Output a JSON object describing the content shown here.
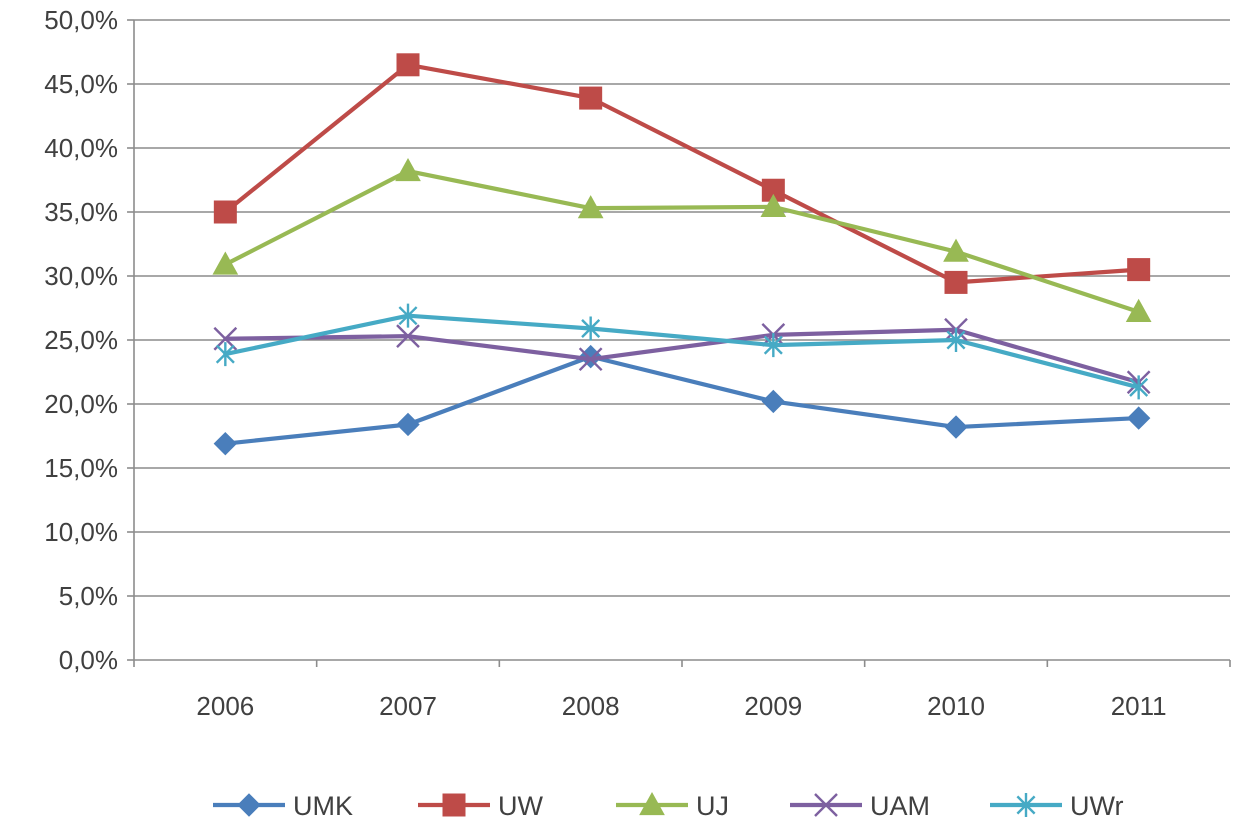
{
  "chart_data": {
    "type": "line",
    "title": "",
    "xlabel": "",
    "ylabel": "",
    "categories": [
      "2006",
      "2007",
      "2008",
      "2009",
      "2010",
      "2011"
    ],
    "ylim": [
      0,
      50
    ],
    "ytick_values": [
      0,
      5,
      10,
      15,
      20,
      25,
      30,
      35,
      40,
      45,
      50
    ],
    "ytick_labels": [
      "0,0%",
      "5,0%",
      "10,0%",
      "15,0%",
      "20,0%",
      "25,0%",
      "30,0%",
      "35,0%",
      "40,0%",
      "45,0%",
      "50,0%"
    ],
    "grid": true,
    "legend_position": "bottom",
    "series": [
      {
        "name": "UMK",
        "color": "#4a7ebb",
        "marker": "diamond",
        "values": [
          16.9,
          18.4,
          23.7,
          20.2,
          18.2,
          18.9
        ]
      },
      {
        "name": "UW",
        "color": "#be4b48",
        "marker": "square",
        "values": [
          35.0,
          46.5,
          43.9,
          36.7,
          29.5,
          30.5
        ]
      },
      {
        "name": "UJ",
        "color": "#98b954",
        "marker": "triangle",
        "values": [
          30.9,
          38.2,
          35.3,
          35.4,
          31.9,
          27.2
        ]
      },
      {
        "name": "UAM",
        "color": "#7d60a0",
        "marker": "x",
        "values": [
          25.1,
          25.3,
          23.5,
          25.4,
          25.8,
          21.7
        ]
      },
      {
        "name": "UWr",
        "color": "#46aac5",
        "marker": "star",
        "values": [
          23.9,
          26.9,
          25.9,
          24.6,
          25.0,
          21.3
        ]
      }
    ]
  }
}
